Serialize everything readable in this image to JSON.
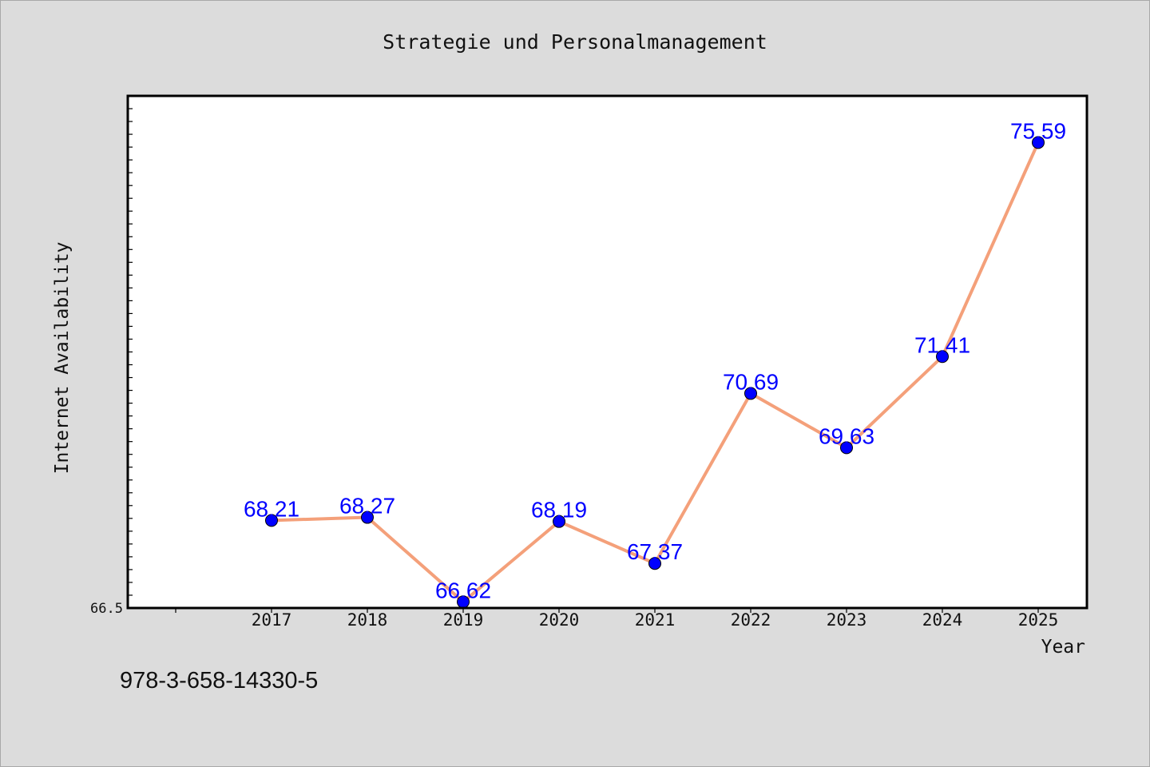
{
  "chart_data": {
    "type": "line",
    "title": "Strategie und Personalmanagement",
    "xlabel": "Year",
    "ylabel": "Internet Availability",
    "categories": [
      "2017",
      "2018",
      "2019",
      "2020",
      "2021",
      "2022",
      "2023",
      "2024",
      "2025"
    ],
    "values": [
      68.21,
      68.27,
      66.62,
      68.19,
      67.37,
      70.69,
      69.63,
      71.41,
      75.59
    ],
    "data_labels": [
      "68.21",
      "68.27",
      "66.62",
      "68.19",
      "67.37",
      "70.69",
      "69.63",
      "71.41",
      "75.59"
    ],
    "ylim": [
      66.5,
      76.5
    ],
    "y_tick_labels": [
      "66.5"
    ],
    "grid": false,
    "line_color": "#f4a07a",
    "marker_color": "#0000ff",
    "label_color": "#0000ff"
  },
  "footer": {
    "isbn": "978-3-658-14330-5"
  }
}
